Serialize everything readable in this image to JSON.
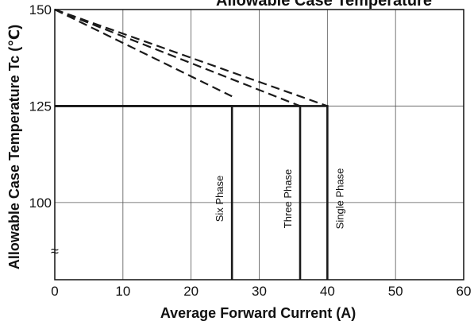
{
  "chart_data": {
    "type": "line",
    "title": "Allowable Case Temperature",
    "xlabel": "Average Forward Current (A)",
    "ylabel": "Allowable Case Temperature Tc (℃)",
    "xlim": [
      0,
      60
    ],
    "ylim": [
      80,
      150
    ],
    "x_ticks": [
      0,
      10,
      20,
      30,
      40,
      50,
      60
    ],
    "y_ticks": [
      100,
      125,
      150
    ],
    "y_axis_break_symbol": "≈",
    "grid": true,
    "colors": {
      "line": "#1a1a1a",
      "grid": "#555555",
      "background": "#ffffff"
    },
    "series": [
      {
        "name": "Single Phase",
        "dashed": {
          "x": [
            0,
            40
          ],
          "y": [
            150,
            125
          ]
        },
        "solid": {
          "x": [
            0,
            40,
            40
          ],
          "y": [
            125,
            125,
            80
          ]
        }
      },
      {
        "name": "Three Phase",
        "dashed": {
          "x": [
            0,
            36
          ],
          "y": [
            150,
            125
          ]
        },
        "solid": {
          "x": [
            0,
            36,
            36
          ],
          "y": [
            125,
            125,
            80
          ]
        }
      },
      {
        "name": "Six Phase",
        "dashed": {
          "x": [
            0,
            26
          ],
          "y": [
            150,
            127.5
          ]
        },
        "solid": {
          "x": [
            0,
            26,
            26
          ],
          "y": [
            125,
            125,
            80
          ]
        }
      }
    ]
  }
}
